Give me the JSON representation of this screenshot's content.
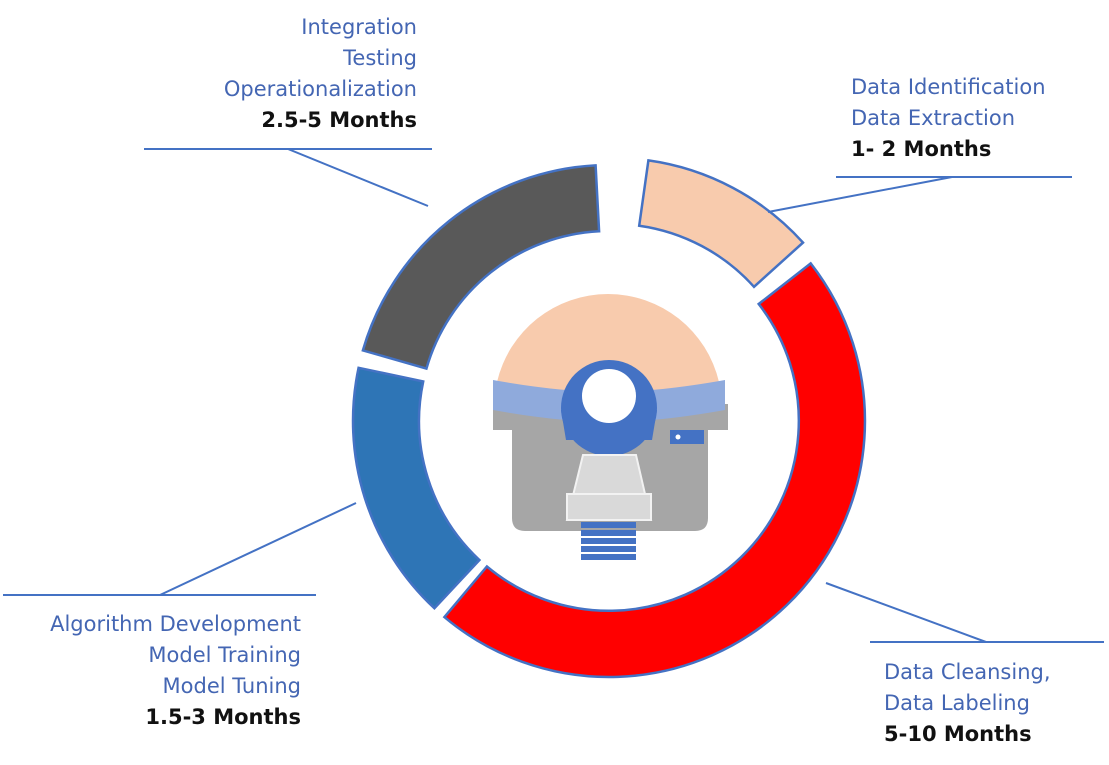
{
  "colors": {
    "text": "#4466B3",
    "duration_text": "#111111",
    "leader_line": "#4472C4",
    "segment_stroke": "#4472C4"
  },
  "segments": [
    {
      "id": "data-identification",
      "lines": [
        "Data Identification",
        "Data Extraction"
      ],
      "duration": "1- 2 Months",
      "color": "#F8CBAD"
    },
    {
      "id": "data-cleansing",
      "lines": [
        "Data Cleansing,",
        "Data Labeling"
      ],
      "duration": "5-10 Months",
      "color": "#FF0000"
    },
    {
      "id": "algorithm-development",
      "lines": [
        "Algorithm Development",
        "Model Training",
        "Model Tuning"
      ],
      "duration": "1.5-3 Months",
      "color": "#2E75B6"
    },
    {
      "id": "integration",
      "lines": [
        "Integration",
        "Testing",
        "Operationalization"
      ],
      "duration": "2.5-5 Months",
      "color": "#595959"
    }
  ],
  "center_icon": {
    "name": "mri-scanner-icon",
    "colors": {
      "top": "#F8CBAD",
      "band": "#8FAADC",
      "ring": "#4472C4",
      "body": "#A6A6A6",
      "table": "#D9D9D9",
      "coil": "#4472C4"
    }
  }
}
